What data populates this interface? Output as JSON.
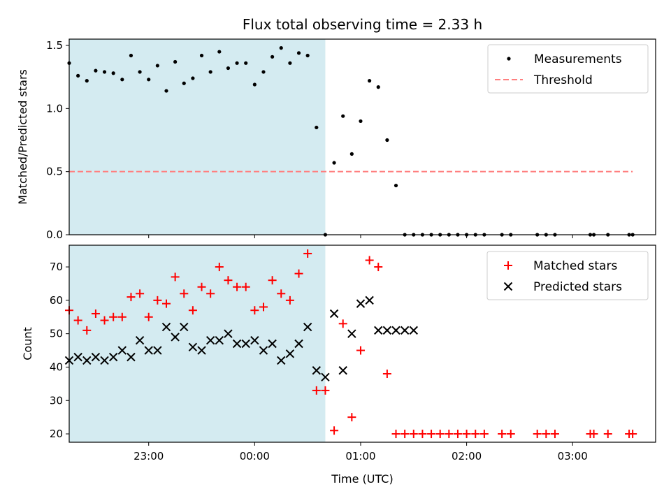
{
  "title": "Flux total observing time = 2.33 h",
  "colors": {
    "measurement": "#000000",
    "threshold": "#ff7f7f",
    "matched": "#ff0000",
    "predicted": "#000000",
    "shade": "#d4ebf1"
  },
  "chart_data": [
    {
      "type": "scatter",
      "panel": "top",
      "ylabel": "Matched/Predicted stars",
      "xlabel": "",
      "ylim": [
        0,
        1.55
      ],
      "yticks": [
        "0.0",
        "0.5",
        "1.0",
        "1.5"
      ],
      "ytick_values": [
        0,
        0.5,
        1.0,
        1.5
      ],
      "xlim": [
        "22:15",
        "03:47"
      ],
      "shaded_interval": [
        "22:15",
        "00:40"
      ],
      "legend_position": "top-right",
      "series": [
        {
          "name": "Measurements",
          "marker": "dot",
          "x": [
            "22:15",
            "22:20",
            "22:25",
            "22:30",
            "22:35",
            "22:40",
            "22:45",
            "22:50",
            "22:55",
            "23:00",
            "23:05",
            "23:10",
            "23:15",
            "23:20",
            "23:25",
            "23:30",
            "23:35",
            "23:40",
            "23:45",
            "23:50",
            "23:55",
            "00:00",
            "00:05",
            "00:10",
            "00:15",
            "00:20",
            "00:25",
            "00:30",
            "00:35",
            "00:40",
            "00:45",
            "00:50",
            "00:55",
            "01:00",
            "01:05",
            "01:10",
            "01:15",
            "01:20",
            "01:25",
            "01:30",
            "01:35",
            "01:40",
            "01:45",
            "01:50",
            "01:55",
            "02:00",
            "02:05",
            "02:10",
            "02:20",
            "02:25",
            "02:40",
            "02:45",
            "02:50",
            "03:10",
            "03:12",
            "03:20",
            "03:32",
            "03:34"
          ],
          "y": [
            1.36,
            1.26,
            1.22,
            1.3,
            1.29,
            1.28,
            1.23,
            1.42,
            1.29,
            1.23,
            1.34,
            1.14,
            1.37,
            1.2,
            1.24,
            1.42,
            1.29,
            1.45,
            1.32,
            1.36,
            1.36,
            1.19,
            1.29,
            1.41,
            1.48,
            1.36,
            1.44,
            1.42,
            0.85,
            0,
            0.57,
            0.94,
            0.64,
            0.9,
            1.22,
            1.17,
            0.75,
            0.39,
            0,
            0,
            0,
            0,
            0,
            0,
            0,
            0,
            0,
            0,
            0,
            0,
            0,
            0,
            0,
            0,
            0,
            0,
            0,
            0
          ]
        },
        {
          "name": "Threshold",
          "marker": "dashed-line",
          "x": [
            "22:15",
            "03:34"
          ],
          "y": [
            0.5,
            0.5
          ]
        }
      ]
    },
    {
      "type": "scatter",
      "panel": "bottom",
      "ylabel": "Count",
      "xlabel": "Time (UTC)",
      "ylim": [
        17.5,
        76.5
      ],
      "yticks": [
        "20",
        "30",
        "40",
        "50",
        "60",
        "70"
      ],
      "ytick_values": [
        20,
        30,
        40,
        50,
        60,
        70
      ],
      "xlim": [
        "22:15",
        "03:47"
      ],
      "xticks": [
        "23:00",
        "00:00",
        "01:00",
        "02:00",
        "03:00"
      ],
      "shaded_interval": [
        "22:15",
        "00:40"
      ],
      "legend_position": "top-right",
      "series": [
        {
          "name": "Matched stars",
          "marker": "plus",
          "x": [
            "22:15",
            "22:20",
            "22:25",
            "22:30",
            "22:35",
            "22:40",
            "22:45",
            "22:50",
            "22:55",
            "23:00",
            "23:05",
            "23:10",
            "23:15",
            "23:20",
            "23:25",
            "23:30",
            "23:35",
            "23:40",
            "23:45",
            "23:50",
            "23:55",
            "00:00",
            "00:05",
            "00:10",
            "00:15",
            "00:20",
            "00:25",
            "00:30",
            "00:35",
            "00:40",
            "00:45",
            "00:50",
            "00:55",
            "01:00",
            "01:05",
            "01:10",
            "01:15",
            "01:20",
            "01:25",
            "01:30",
            "01:35",
            "01:40",
            "01:45",
            "01:50",
            "01:55",
            "02:00",
            "02:05",
            "02:10",
            "02:20",
            "02:25",
            "02:40",
            "02:45",
            "02:50",
            "03:10",
            "03:12",
            "03:20",
            "03:32",
            "03:34"
          ],
          "y": [
            57,
            54,
            51,
            56,
            54,
            55,
            55,
            61,
            62,
            55,
            60,
            59,
            67,
            62,
            57,
            64,
            62,
            70,
            66,
            64,
            64,
            57,
            58,
            66,
            62,
            60,
            68,
            74,
            33,
            33,
            21,
            53,
            25,
            45,
            72,
            70,
            38,
            20,
            20,
            20,
            20,
            20,
            20,
            20,
            20,
            20,
            20,
            20,
            20,
            20,
            20,
            20,
            20,
            20,
            20,
            20,
            20,
            20
          ]
        },
        {
          "name": "Predicted stars",
          "marker": "x",
          "x": [
            "22:15",
            "22:20",
            "22:25",
            "22:30",
            "22:35",
            "22:40",
            "22:45",
            "22:50",
            "22:55",
            "23:00",
            "23:05",
            "23:10",
            "23:15",
            "23:20",
            "23:25",
            "23:30",
            "23:35",
            "23:40",
            "23:45",
            "23:50",
            "23:55",
            "00:00",
            "00:05",
            "00:10",
            "00:15",
            "00:20",
            "00:25",
            "00:30",
            "00:35",
            "00:40",
            "00:45",
            "00:50",
            "00:55",
            "01:00",
            "01:05",
            "01:10",
            "01:15",
            "01:20",
            "01:25",
            "01:30"
          ],
          "y": [
            42,
            43,
            42,
            43,
            42,
            43,
            45,
            43,
            48,
            45,
            45,
            52,
            49,
            52,
            46,
            45,
            48,
            48,
            50,
            47,
            47,
            48,
            45,
            47,
            42,
            44,
            47,
            52,
            39,
            37,
            56,
            39,
            50,
            59,
            60,
            51,
            51,
            51,
            51,
            51
          ]
        }
      ]
    }
  ]
}
